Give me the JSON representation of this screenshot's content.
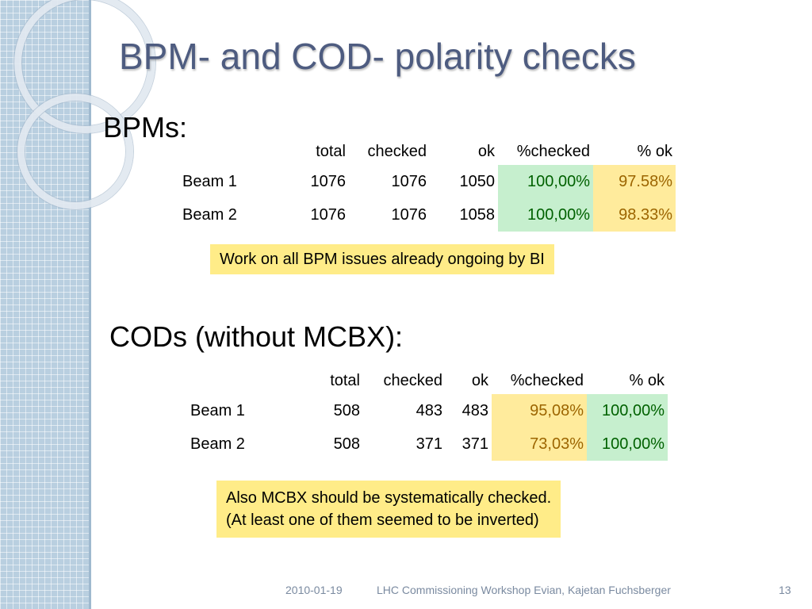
{
  "slide": {
    "title": "BPM- and COD- polarity checks",
    "page_number": "13",
    "footer_date": "2010-01-19",
    "footer_text": "LHC Commissioning Workshop Evian, Kajetan Fuchsberger"
  },
  "bpm": {
    "heading": "BPMs:",
    "columns": [
      "",
      "total",
      "checked",
      "ok",
      "%checked",
      "% ok"
    ],
    "rows": [
      {
        "label": "Beam 1",
        "total": "1076",
        "checked": "1076",
        "ok": "1050",
        "pct_checked": "100,00%",
        "pct_ok": "97.58%"
      },
      {
        "label": "Beam 2",
        "total": "1076",
        "checked": "1076",
        "ok": "1058",
        "pct_checked": "100,00%",
        "pct_ok": "98.33%"
      }
    ],
    "note": "Work on all BPM issues already ongoing by BI"
  },
  "cod": {
    "heading": "CODs (without MCBX):",
    "columns": [
      "",
      "total",
      "checked",
      "ok",
      "%checked",
      "% ok"
    ],
    "rows": [
      {
        "label": "Beam 1",
        "total": "508",
        "checked": "483",
        "ok": "483",
        "pct_checked": "95,08%",
        "pct_ok": "100,00%"
      },
      {
        "label": "Beam 2",
        "total": "508",
        "checked": "371",
        "ok": "371",
        "pct_checked": "73,03%",
        "pct_ok": "100,00%"
      }
    ],
    "note_lines": [
      "Also MCBX should be systematically checked.",
      "(At least one of them seemed to be inverted)"
    ]
  },
  "colors": {
    "good_fill": "#c6efce",
    "good_text": "#006100",
    "warn_fill": "#ffeb9c",
    "warn_text": "#9c6500",
    "note_fill": "#ffec88",
    "title_color": "#4e5c80"
  }
}
